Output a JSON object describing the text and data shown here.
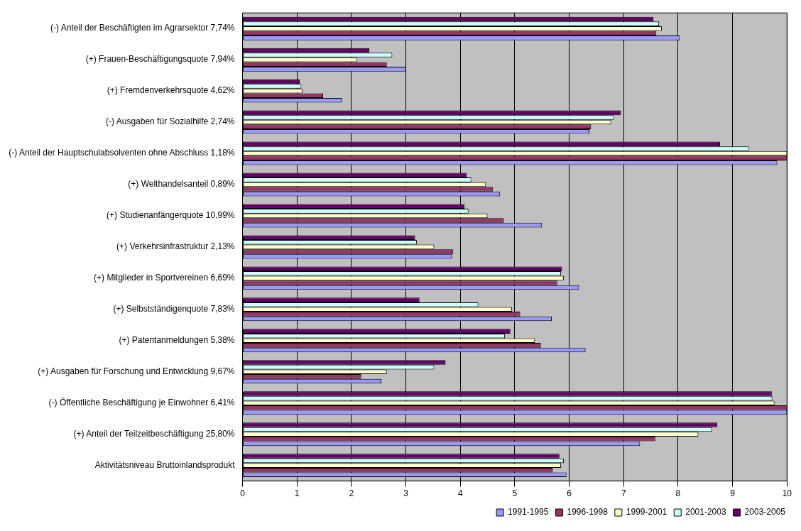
{
  "chart_data": {
    "type": "bar",
    "orientation": "horizontal",
    "categories": [
      "(-) Anteil der Beschäftigten im Agrarsektor 7,74%",
      "(+) Frauen-Beschäftigungsquote 7,94%",
      "(+) Fremdenverkehrsquote 4,62%",
      "(-) Ausgaben für Sozialhilfe 2,74%",
      "(-) Anteil der Hauptschulabsolventen ohne Abschluss 1,18%",
      "(+) Welthandelsanteil 0,89%",
      "(+) Studienanfängerquote 10,99%",
      "(+) Verkehrsinfrastruktur 2,13%",
      "(+) Mitglieder in Sportvereinen 6,69%",
      "(+) Selbstständigenquote 7,83%",
      "(+) Patentanmeldungen 5,38%",
      "(+) Ausgaben für Forschung und Entwicklung 9,67%",
      "(-) Öffentliche Beschäftigung je Einwohner 6,41%",
      "(+) Anteil der Teilzeitbeschäftigung 25,80%",
      "Aktivitätsniveau Bruttoinlandsprodukt"
    ],
    "series": [
      {
        "name": "1991-1995",
        "color": "#9999ff",
        "values": [
          8.03,
          3.0,
          1.83,
          6.37,
          9.82,
          4.73,
          5.5,
          3.85,
          6.18,
          5.68,
          6.3,
          2.55,
          10,
          7.3,
          5.95
        ]
      },
      {
        "name": "1996-1998",
        "color": "#993366",
        "values": [
          7.6,
          2.65,
          1.48,
          6.4,
          10,
          4.6,
          4.8,
          3.87,
          5.78,
          5.1,
          5.48,
          2.18,
          10,
          7.58,
          5.7
        ]
      },
      {
        "name": "1999-2001",
        "color": "#ffffcc",
        "values": [
          7.7,
          2.1,
          1.1,
          6.77,
          10,
          4.47,
          4.5,
          3.52,
          5.9,
          4.95,
          5.37,
          2.65,
          9.77,
          8.37,
          5.85
        ]
      },
      {
        "name": "2001-2003",
        "color": "#ccffff",
        "values": [
          7.65,
          2.75,
          1.08,
          6.82,
          9.3,
          4.2,
          4.15,
          3.2,
          5.85,
          4.33,
          4.82,
          3.52,
          9.73,
          8.62,
          5.9
        ]
      },
      {
        "name": "2003-2005",
        "color": "#660066",
        "values": [
          7.55,
          2.33,
          1.05,
          6.95,
          8.77,
          4.12,
          4.08,
          3.17,
          5.87,
          3.25,
          4.92,
          3.73,
          9.72,
          8.72,
          5.82
        ]
      }
    ],
    "xlim": [
      0,
      10
    ],
    "xticks": [
      0,
      1,
      2,
      3,
      4,
      5,
      6,
      7,
      8,
      9,
      10
    ],
    "grid": "x",
    "legend": "bottom right"
  }
}
